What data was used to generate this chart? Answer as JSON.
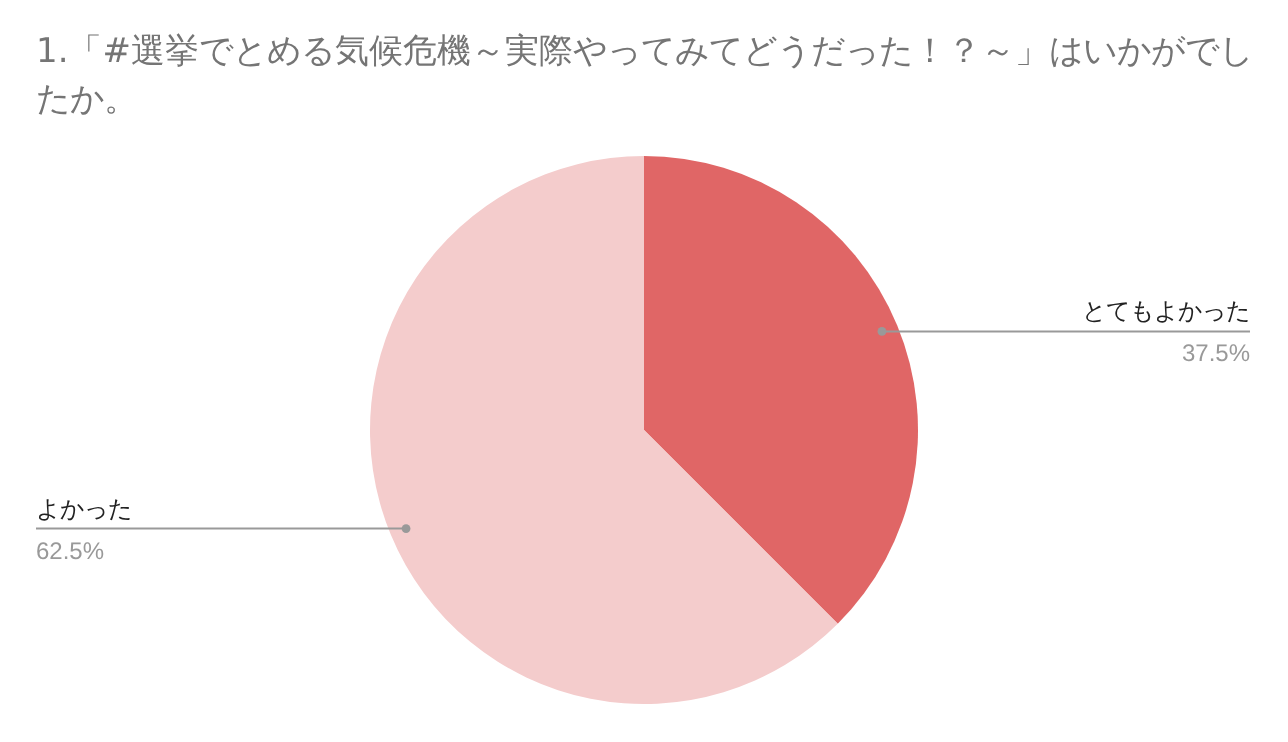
{
  "chart_data": {
    "type": "pie",
    "title": "1.「#選挙でとめる気候危機～実際やってみてどうだった！？～」はいかがでしたか。",
    "categories": [
      "とてもよかった",
      "よかった"
    ],
    "values": [
      37.5,
      62.5
    ],
    "colors": [
      "#e06666",
      "#f4cccc"
    ],
    "value_labels": [
      "37.5%",
      "62.5%"
    ]
  }
}
